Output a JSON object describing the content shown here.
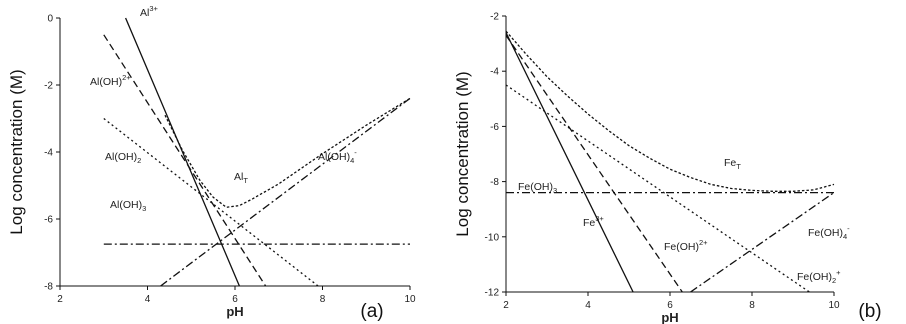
{
  "chart_data": [
    {
      "id": "a",
      "type": "line",
      "panel_label": "(a)",
      "xlabel": "pH",
      "ylabel": "Log concentration (M)",
      "xlim": [
        2,
        10
      ],
      "ylim": [
        -8,
        0
      ],
      "xticks": [
        2,
        4,
        6,
        8,
        10
      ],
      "yticks": [
        0,
        -2,
        -4,
        -6,
        -8
      ],
      "xtick_labels": [
        "2",
        "4",
        "6",
        "8",
        "10"
      ],
      "ytick_labels": [
        "0",
        "-2",
        "-4",
        "-6",
        "-8"
      ],
      "grid": false,
      "series": [
        {
          "name": "Al3+",
          "dash": "solid",
          "label": "Al",
          "label_sup": "3+",
          "x": [
            3.5,
            6.1
          ],
          "y": [
            0,
            -8
          ]
        },
        {
          "name": "Al(OH)2+",
          "dash": "dashed",
          "label": "Al(OH)",
          "label_sup": "2+",
          "x": [
            3.0,
            6.7
          ],
          "y": [
            -0.5,
            -8
          ]
        },
        {
          "name": "Al(OH)2 +",
          "dash": "dotted",
          "label": "Al(OH)",
          "label_sub": "2",
          "x": [
            3.0,
            7.9
          ],
          "y": [
            -3.0,
            -8
          ]
        },
        {
          "name": "Al(OH)3",
          "dash": "dashdot",
          "label": "Al(OH)",
          "label_sub": "3",
          "x": [
            3.0,
            10.0
          ],
          "y": [
            -6.75,
            -6.75
          ]
        },
        {
          "name": "Al(OH)4-",
          "dash": "dashdot",
          "label": "Al(OH)",
          "label_sub": "4",
          "label_sup": "-",
          "x": [
            4.3,
            10.0
          ],
          "y": [
            -8.0,
            -2.4
          ]
        },
        {
          "name": "AlT",
          "dash": "shortdot",
          "label": "Al",
          "label_sub": "T",
          "x": [
            4.4,
            4.8,
            5.2,
            5.5,
            5.8,
            6.1,
            6.4,
            7.0,
            8.0,
            9.0,
            10.0
          ],
          "y": [
            -2.9,
            -3.95,
            -4.85,
            -5.35,
            -5.65,
            -5.6,
            -5.4,
            -4.95,
            -4.05,
            -3.2,
            -2.4
          ]
        }
      ]
    },
    {
      "id": "b",
      "type": "line",
      "panel_label": "(b)",
      "xlabel": "pH",
      "ylabel": "Log concentration (M)",
      "xlim": [
        2,
        10
      ],
      "ylim": [
        -12,
        -2
      ],
      "xticks": [
        2,
        4,
        6,
        8,
        10
      ],
      "yticks": [
        -2,
        -4,
        -6,
        -8,
        -10,
        -12
      ],
      "xtick_labels": [
        "2",
        "4",
        "6",
        "8",
        "10"
      ],
      "ytick_labels": [
        "-2",
        "-4",
        "-6",
        "-8",
        "-10",
        "-12"
      ],
      "grid": false,
      "series": [
        {
          "name": "Fe3+",
          "dash": "solid",
          "label": "Fe",
          "label_sup": "3+",
          "x": [
            2.0,
            5.1
          ],
          "y": [
            -2.6,
            -12
          ]
        },
        {
          "name": "Fe(OH)2+",
          "dash": "dashed",
          "label": "Fe(OH)",
          "label_sup": "2+",
          "x": [
            2.0,
            6.3
          ],
          "y": [
            -2.7,
            -12
          ]
        },
        {
          "name": "Fe(OH)2 +",
          "dash": "dotted",
          "label": "Fe(OH)",
          "label_sub": "2",
          "label_sup": "+",
          "x": [
            2.0,
            9.4
          ],
          "y": [
            -4.5,
            -12
          ]
        },
        {
          "name": "Fe(OH)3",
          "dash": "dashdot",
          "label": "Fe(OH)",
          "label_sub": "3",
          "x": [
            2.0,
            10.0
          ],
          "y": [
            -8.4,
            -8.4
          ]
        },
        {
          "name": "Fe(OH)4-",
          "dash": "dashdot",
          "label": "Fe(OH)",
          "label_sub": "4",
          "label_sup": "-",
          "x": [
            6.5,
            10.0
          ],
          "y": [
            -12,
            -8.4
          ]
        },
        {
          "name": "FeT",
          "dash": "shortdot",
          "label": "Fe",
          "label_sub": "T",
          "x": [
            2.0,
            2.5,
            3.0,
            3.5,
            4.0,
            4.5,
            5.0,
            5.5,
            6.0,
            6.5,
            7.0,
            7.5,
            8.0,
            8.5,
            9.0,
            9.5,
            10.0
          ],
          "y": [
            -2.55,
            -3.4,
            -4.2,
            -4.9,
            -5.55,
            -6.15,
            -6.7,
            -7.15,
            -7.55,
            -7.85,
            -8.1,
            -8.25,
            -8.32,
            -8.35,
            -8.35,
            -8.3,
            -8.1
          ]
        }
      ]
    }
  ]
}
